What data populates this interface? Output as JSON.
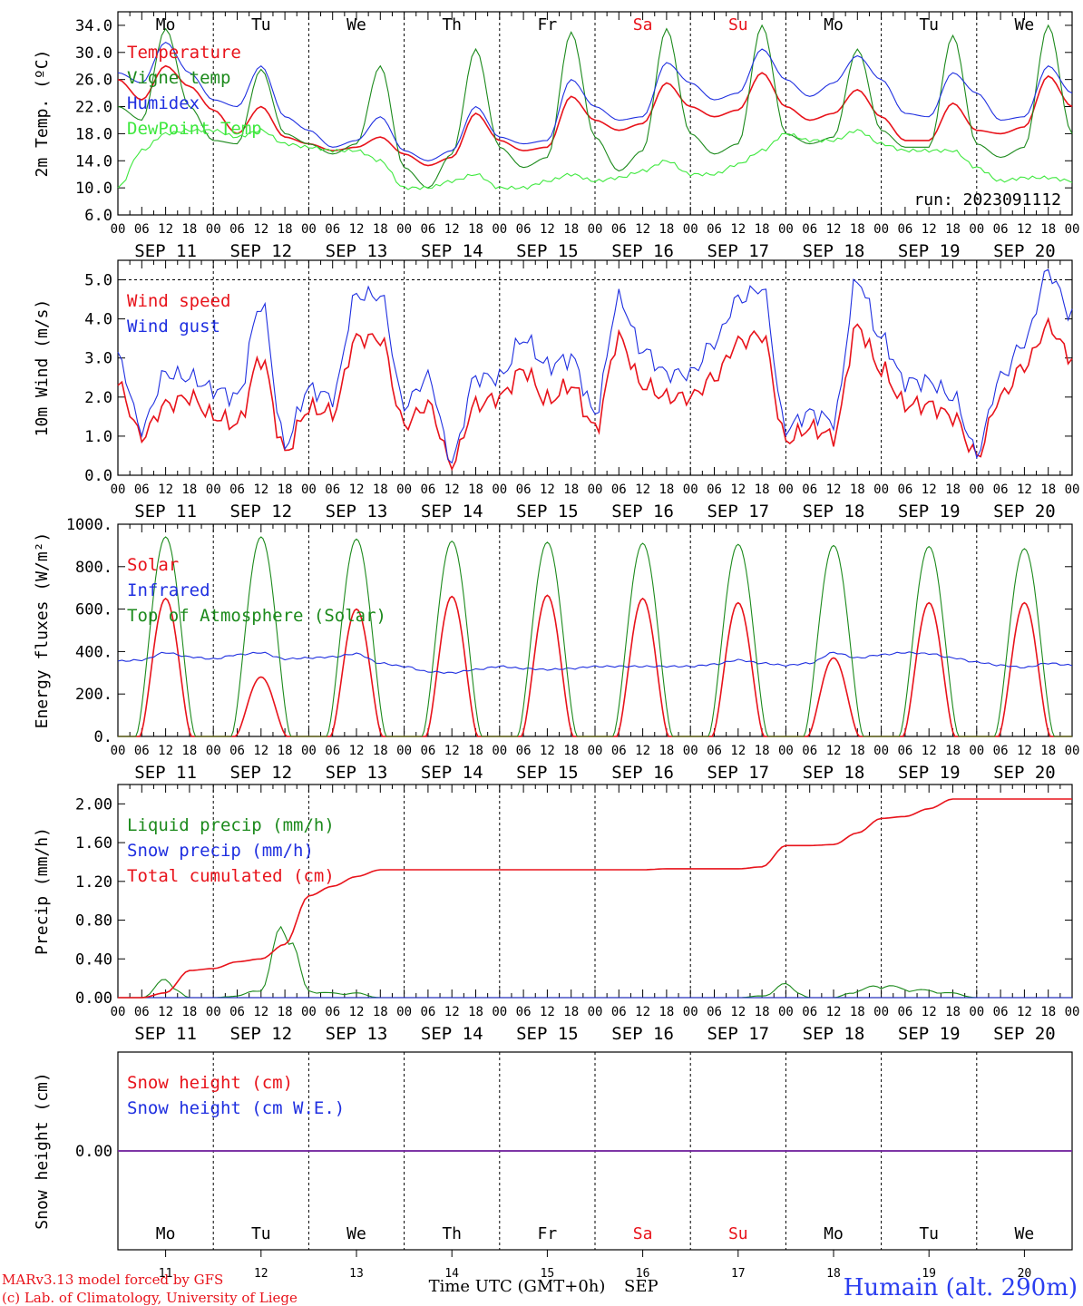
{
  "colors": {
    "red": "#e8131b",
    "green": "#1c8a1c",
    "blue": "#1f2fe0",
    "lightgreen": "#3ee83e",
    "purple": "#7a2aa0",
    "text": "#000000",
    "weekend": "#e8131b",
    "station": "#2b3ef0"
  },
  "days": {
    "names": [
      "Mo",
      "Tu",
      "We",
      "Th",
      "Fr",
      "Sa",
      "Su",
      "Mo",
      "Tu",
      "We"
    ],
    "dates": [
      "SEP 11",
      "SEP 12",
      "SEP 13",
      "SEP 14",
      "SEP 15",
      "SEP 16",
      "SEP 17",
      "SEP 18",
      "SEP 19",
      "SEP 20"
    ],
    "numbers": [
      "11",
      "12",
      "13",
      "14",
      "15",
      "16",
      "17",
      "18",
      "19",
      "20"
    ],
    "weekend_index": [
      5,
      6
    ],
    "hour_ticks": [
      "00",
      "06",
      "12",
      "18"
    ],
    "final_tick": "00"
  },
  "footer": {
    "model": "MARv3.13 model forced by GFS",
    "copyright": "(c) Lab. of Climatology, University of Liege",
    "time_label": "Time UTC (GMT+0h)",
    "month": "SEP",
    "station": "Humain (alt. 290m)"
  },
  "chart_data": [
    {
      "id": "temp",
      "type": "line",
      "ylabel": "2m Temp. (ºC)",
      "ylim": [
        6.0,
        36.0
      ],
      "yticks": [
        "6.0",
        "10.0",
        "14.0",
        "18.0",
        "22.0",
        "26.0",
        "30.0",
        "34.0"
      ],
      "ytick_values": [
        6,
        10,
        14,
        18,
        22,
        26,
        30,
        34
      ],
      "annotation": "run: 2023091112",
      "x_hours": [
        0,
        6,
        12,
        18,
        24,
        30,
        36,
        42,
        48,
        54,
        60,
        66,
        72,
        78,
        84,
        90,
        96,
        102,
        108,
        114,
        120,
        126,
        132,
        138,
        144,
        150,
        156,
        162,
        168,
        174,
        180,
        186,
        192,
        198,
        204,
        210,
        216,
        222,
        228,
        234,
        240
      ],
      "series": [
        {
          "name": "Temperature",
          "color": "red",
          "values": [
            26.0,
            23.0,
            28.0,
            25.0,
            21.5,
            18.0,
            22.0,
            17.5,
            16.5,
            15.5,
            16.0,
            17.5,
            15.0,
            13.3,
            14.5,
            21.0,
            17.0,
            15.5,
            16.0,
            23.5,
            20.0,
            18.5,
            19.5,
            25.5,
            22.0,
            20.5,
            21.5,
            27.0,
            22.0,
            20.0,
            21.0,
            24.5,
            20.5,
            17.0,
            17.0,
            22.5,
            18.5,
            18.0,
            19.0,
            26.5,
            22.0
          ]
        },
        {
          "name": "Vigne temp",
          "color": "green",
          "values": [
            22.0,
            20.0,
            33.5,
            22.0,
            17.0,
            16.5,
            27.5,
            18.0,
            16.5,
            15.0,
            16.5,
            28.0,
            13.0,
            10.0,
            15.0,
            30.5,
            16.0,
            13.0,
            14.5,
            33.0,
            17.5,
            12.5,
            15.5,
            33.5,
            18.0,
            15.0,
            16.5,
            34.0,
            18.0,
            16.5,
            17.5,
            30.5,
            18.5,
            16.0,
            16.0,
            32.5,
            16.5,
            14.5,
            16.0,
            34.0,
            18.0
          ]
        },
        {
          "name": "Humidex",
          "color": "blue",
          "values": [
            27.0,
            25.5,
            31.5,
            27.0,
            23.0,
            22.0,
            28.0,
            20.5,
            18.5,
            16.0,
            17.0,
            20.5,
            15.5,
            14.0,
            15.5,
            22.0,
            17.5,
            16.5,
            17.0,
            26.0,
            22.0,
            20.0,
            20.5,
            28.5,
            25.5,
            23.0,
            24.0,
            30.5,
            26.0,
            23.5,
            25.5,
            29.5,
            26.0,
            21.0,
            20.5,
            27.0,
            24.0,
            20.0,
            20.5,
            28.0,
            24.0
          ]
        },
        {
          "name": "DewPoint Temp",
          "color": "lightgreen",
          "values": [
            10.0,
            15.5,
            18.0,
            18.5,
            18.5,
            17.5,
            18.5,
            16.5,
            16.0,
            15.5,
            15.5,
            14.0,
            10.0,
            10.0,
            11.0,
            12.0,
            10.0,
            10.0,
            11.0,
            12.0,
            11.0,
            11.5,
            12.5,
            14.0,
            12.0,
            12.0,
            13.5,
            15.5,
            18.0,
            17.0,
            17.0,
            18.5,
            16.5,
            15.5,
            15.5,
            15.5,
            13.0,
            11.0,
            11.5,
            11.5,
            11.0
          ]
        }
      ]
    },
    {
      "id": "wind",
      "type": "line",
      "ylabel": "10m Wind (m/s)",
      "ylim": [
        0.0,
        5.5
      ],
      "yticks": [
        "0.0",
        "1.0",
        "2.0",
        "3.0",
        "4.0",
        "5.0"
      ],
      "ytick_values": [
        0,
        1,
        2,
        3,
        4,
        5
      ],
      "x_hours": [
        0,
        6,
        12,
        18,
        24,
        30,
        36,
        42,
        48,
        54,
        60,
        66,
        72,
        78,
        84,
        90,
        96,
        102,
        108,
        114,
        120,
        126,
        132,
        138,
        144,
        150,
        156,
        162,
        168,
        174,
        180,
        186,
        192,
        198,
        204,
        210,
        216,
        222,
        228,
        234,
        240
      ],
      "series": [
        {
          "name": "Wind speed",
          "color": "red",
          "values": [
            2.3,
            1.0,
            1.8,
            2.0,
            1.5,
            1.3,
            3.0,
            0.6,
            1.7,
            1.6,
            3.5,
            3.5,
            1.3,
            1.8,
            0.3,
            1.8,
            2.0,
            2.7,
            1.9,
            2.3,
            1.2,
            3.5,
            2.3,
            2.0,
            2.0,
            2.5,
            3.4,
            3.6,
            0.9,
            1.2,
            1.0,
            3.8,
            2.7,
            1.8,
            1.8,
            1.5,
            0.5,
            2.0,
            2.8,
            3.8,
            3.0
          ]
        },
        {
          "name": "Wind gust",
          "color": "blue",
          "values": [
            3.0,
            1.2,
            2.6,
            2.5,
            2.2,
            2.0,
            4.4,
            0.8,
            2.2,
            2.0,
            4.6,
            4.6,
            1.8,
            2.5,
            0.4,
            2.5,
            2.5,
            3.5,
            2.8,
            3.0,
            1.6,
            4.5,
            3.2,
            2.6,
            2.6,
            3.4,
            4.5,
            4.8,
            1.2,
            1.6,
            1.4,
            5.0,
            3.5,
            2.4,
            2.4,
            2.0,
            0.6,
            2.5,
            3.4,
            5.2,
            4.1
          ]
        }
      ]
    },
    {
      "id": "energy",
      "type": "line",
      "ylabel": "Energy fluxes (W/m²)",
      "ylim": [
        0,
        1000
      ],
      "yticks": [
        "0.",
        "200.",
        "400.",
        "600.",
        "800.",
        "1000."
      ],
      "ytick_values": [
        0,
        200,
        400,
        600,
        800,
        1000
      ],
      "x_hours": [
        0,
        6,
        12,
        18,
        24,
        30,
        36,
        42,
        48,
        54,
        60,
        66,
        72,
        78,
        84,
        90,
        96,
        102,
        108,
        114,
        120,
        126,
        132,
        138,
        144,
        150,
        156,
        162,
        168,
        174,
        180,
        186,
        192,
        198,
        204,
        210,
        216,
        222,
        228,
        234,
        240
      ],
      "series": [
        {
          "name": "Solar",
          "color": "red",
          "peaks": [
            650,
            280,
            600,
            660,
            665,
            650,
            630,
            370,
            630,
            630
          ]
        },
        {
          "name": "Infrared",
          "color": "blue",
          "values": [
            355,
            360,
            395,
            375,
            365,
            385,
            395,
            365,
            370,
            375,
            390,
            345,
            330,
            305,
            300,
            315,
            330,
            320,
            315,
            320,
            330,
            330,
            330,
            330,
            330,
            340,
            360,
            345,
            335,
            345,
            395,
            370,
            385,
            395,
            390,
            370,
            350,
            335,
            325,
            345,
            335
          ]
        },
        {
          "name": "Top of Atmosphere (Solar)",
          "color": "green",
          "peaks": [
            940,
            940,
            930,
            920,
            915,
            910,
            905,
            900,
            895,
            885
          ]
        }
      ]
    },
    {
      "id": "precip",
      "type": "line",
      "ylabel": "Precip (mm/h)",
      "ylim": [
        0.0,
        2.2
      ],
      "yticks": [
        "0.00",
        "0.40",
        "0.80",
        "1.20",
        "1.60",
        "2.00"
      ],
      "ytick_values": [
        0,
        0.4,
        0.8,
        1.2,
        1.6,
        2.0
      ],
      "x_hours": [
        0,
        6,
        12,
        18,
        24,
        30,
        36,
        42,
        48,
        54,
        60,
        66,
        72,
        78,
        84,
        90,
        96,
        102,
        108,
        114,
        120,
        126,
        132,
        138,
        144,
        150,
        156,
        162,
        168,
        174,
        180,
        186,
        192,
        198,
        204,
        210,
        216,
        222,
        228,
        234,
        240
      ],
      "series": [
        {
          "name": "Liquid precip (mm/h)",
          "color": "green",
          "values": [
            0,
            0,
            0.2,
            0,
            0,
            0.02,
            0.1,
            0.9,
            0.08,
            0.05,
            0.05,
            0,
            0,
            0,
            0,
            0,
            0,
            0,
            0,
            0,
            0,
            0,
            0,
            0,
            0,
            0,
            0,
            0.02,
            0.15,
            0,
            0,
            0.08,
            0.15,
            0.1,
            0.08,
            0.05,
            0,
            0,
            0,
            0,
            0
          ]
        },
        {
          "name": "Snow precip (mm/h)",
          "color": "blue",
          "values": [
            0,
            0,
            0,
            0,
            0,
            0,
            0,
            0,
            0,
            0,
            0,
            0,
            0,
            0,
            0,
            0,
            0,
            0,
            0,
            0,
            0,
            0,
            0,
            0,
            0,
            0,
            0,
            0,
            0,
            0,
            0,
            0,
            0,
            0,
            0,
            0,
            0,
            0,
            0,
            0,
            0
          ]
        },
        {
          "name": "Total cumulated (cm)",
          "color": "red",
          "values": [
            0,
            0,
            0.05,
            0.28,
            0.3,
            0.37,
            0.4,
            0.55,
            1.05,
            1.15,
            1.25,
            1.32,
            1.32,
            1.32,
            1.32,
            1.32,
            1.32,
            1.32,
            1.32,
            1.32,
            1.32,
            1.32,
            1.32,
            1.33,
            1.33,
            1.33,
            1.33,
            1.35,
            1.57,
            1.57,
            1.58,
            1.7,
            1.85,
            1.87,
            1.95,
            2.05,
            2.05,
            2.05,
            2.05,
            2.05,
            2.05
          ]
        }
      ]
    },
    {
      "id": "snow",
      "type": "line",
      "ylabel": "Snow height (cm)",
      "ylim": [
        -1,
        1
      ],
      "yticks": [
        "0.00"
      ],
      "ytick_values": [
        0
      ],
      "x_hours": [
        0,
        240
      ],
      "series": [
        {
          "name": "Snow height (cm)",
          "color": "red",
          "values": [
            0,
            0
          ]
        },
        {
          "name": "Snow height (cm W.E.)",
          "color": "blue",
          "values": [
            0,
            0
          ]
        }
      ]
    }
  ]
}
